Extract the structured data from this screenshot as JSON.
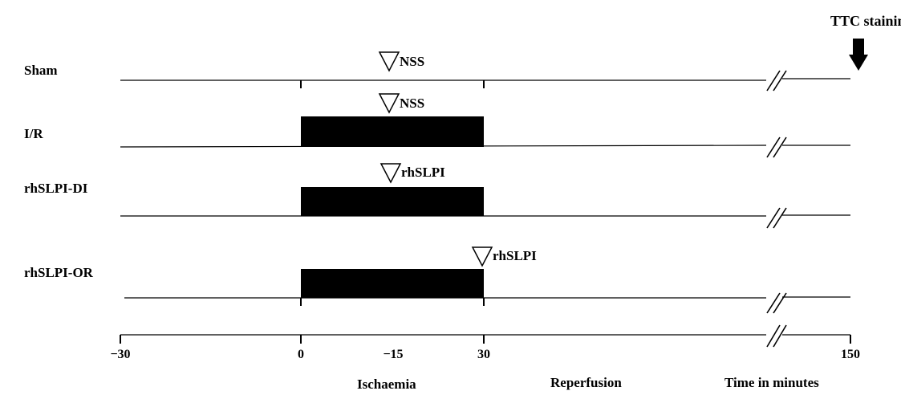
{
  "header": {
    "end_label": "TTC staining"
  },
  "rows": [
    {
      "label": "Sham",
      "marker": "NSS",
      "ischemia_bar": false
    },
    {
      "label": "I/R",
      "marker": "NSS",
      "ischemia_bar": true
    },
    {
      "label": "rhSLPI-DI",
      "marker": "rhSLPI",
      "ischemia_bar": true
    },
    {
      "label": "rhSLPI-OR",
      "marker": "rhSLPI",
      "ischemia_bar": true
    }
  ],
  "axis": {
    "ticks": [
      "−30",
      "0",
      "−15",
      "30",
      "150"
    ],
    "title": "Time in minutes"
  },
  "phases": {
    "ischaemia": "Ischaemia",
    "reperfusion": "Reperfusion"
  },
  "colors": {
    "bar": "#000000",
    "line": "#000000",
    "marker_fill": "#ffffff"
  },
  "icons": {
    "marker": "open-triangle-down-icon",
    "end": "down-arrow-icon"
  }
}
